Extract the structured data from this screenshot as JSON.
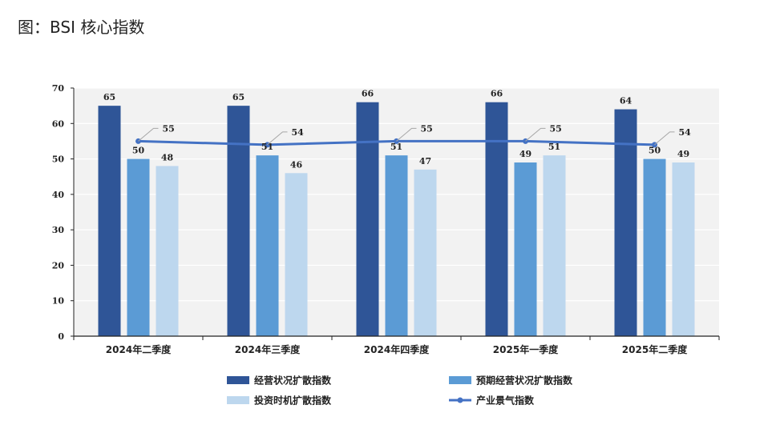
{
  "page_title": "图：BSI 核心指数",
  "chart_data": {
    "type": "bar",
    "title": "",
    "categories": [
      "2024年二季度",
      "2024年三季度",
      "2024年四季度",
      "2025年一季度",
      "2025年二季度"
    ],
    "ylim": [
      0,
      70
    ],
    "yticks": [
      0,
      10,
      20,
      30,
      40,
      50,
      60,
      70
    ],
    "grid": true,
    "legend_position": "bottom",
    "series": [
      {
        "name": "经营状况扩散指数",
        "kind": "bar",
        "color": "#2f5597",
        "values": [
          65,
          65,
          66,
          66,
          64
        ]
      },
      {
        "name": "预期经营状况扩散指数",
        "kind": "bar",
        "color": "#5b9bd5",
        "values": [
          50,
          51,
          51,
          49,
          50
        ]
      },
      {
        "name": "投资时机扩散指数",
        "kind": "bar",
        "color": "#bdd7ee",
        "values": [
          48,
          46,
          47,
          51,
          49
        ]
      },
      {
        "name": "产业景气指数",
        "kind": "line",
        "color": "#4472c4",
        "values": [
          55,
          54,
          55,
          55,
          54
        ]
      }
    ]
  }
}
